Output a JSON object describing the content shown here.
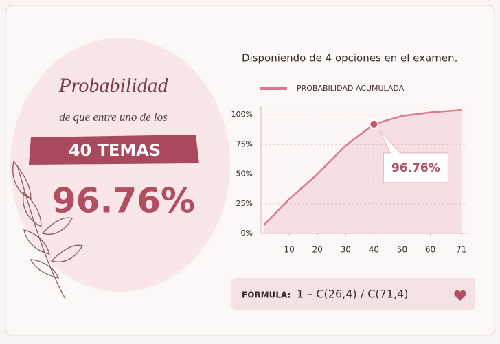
{
  "header": {
    "title": "Probabilidad",
    "subtitle": "de que entre uno de los",
    "banner": "40 TEMAS",
    "result": "96.76%"
  },
  "chart_data": {
    "type": "line",
    "title": "Disponiendo de 4 opciones en el examen.",
    "x": [
      1,
      10,
      20,
      30,
      40,
      50,
      60,
      71
    ],
    "series": [
      {
        "name": "PROBABILIDAD ACUMULADA",
        "color": "#d77a8c",
        "values": [
          7,
          29,
          50,
          74,
          92,
          99,
          102,
          104
        ]
      }
    ],
    "annotation": "96.76%",
    "xlim": [
      0,
      73
    ],
    "xticks": [
      10,
      20,
      30,
      40,
      50,
      60,
      71
    ],
    "ylim": [
      0,
      107
    ],
    "yticks": [
      {
        "value": 0,
        "label": "0%"
      },
      {
        "value": 25,
        "label": "25%"
      },
      {
        "value": 50,
        "label": "50%"
      },
      {
        "value": 75,
        "label": "75%"
      },
      {
        "value": 100,
        "label": "100%"
      }
    ],
    "grid": true
  },
  "formula": {
    "label": "FÓRMULA:",
    "expression": "1 – C(26,4) / C(71,4)"
  }
}
